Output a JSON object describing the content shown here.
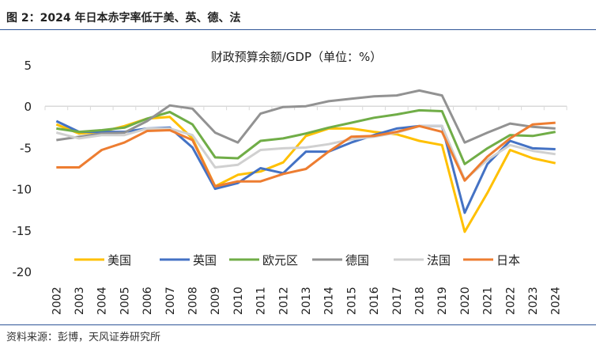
{
  "figure_title": "图 2：2024 年日本赤字率低于美、英、德、法",
  "source": "资料来源：彭博，天风证券研究所",
  "chart_data": {
    "type": "line",
    "title": "财政预算余额/GDP（单位：%）",
    "xlabel": "",
    "ylabel": "",
    "ylim": [
      -20,
      5
    ],
    "yticks": [
      5,
      0,
      -5,
      -10,
      -15,
      -20
    ],
    "grid": false,
    "legend_position": "bottom-inside",
    "categories": [
      "2002",
      "2003",
      "2004",
      "2005",
      "2006",
      "2007",
      "2008",
      "2009",
      "2010",
      "2011",
      "2012",
      "2013",
      "2014",
      "2015",
      "2016",
      "2017",
      "2018",
      "2019",
      "2020",
      "2021",
      "2022",
      "2023",
      "2024"
    ],
    "series": [
      {
        "name": "美国",
        "color": "#ffc000",
        "values": [
          -2.2,
          -3.3,
          -3.1,
          -2.4,
          -1.5,
          -1.3,
          -3.9,
          -9.7,
          -8.3,
          -7.9,
          -6.8,
          -3.6,
          -2.7,
          -2.7,
          -3.1,
          -3.4,
          -4.2,
          -4.7,
          -15.2,
          -10.5,
          -5.3,
          -6.3,
          -6.9
        ]
      },
      {
        "name": "英国",
        "color": "#4472c4",
        "values": [
          -1.8,
          -3.1,
          -3.1,
          -3.1,
          -2.7,
          -2.6,
          -5.0,
          -10.0,
          -9.3,
          -7.5,
          -8.1,
          -5.5,
          -5.5,
          -4.4,
          -3.5,
          -2.7,
          -2.4,
          -2.4,
          -12.9,
          -7.0,
          -4.2,
          -5.1,
          -5.2
        ]
      },
      {
        "name": "欧元区",
        "color": "#70ad47",
        "values": [
          -2.7,
          -3.1,
          -2.9,
          -2.6,
          -1.5,
          -0.7,
          -2.2,
          -6.2,
          -6.3,
          -4.2,
          -3.9,
          -3.3,
          -2.6,
          -2.0,
          -1.4,
          -1.0,
          -0.5,
          -0.6,
          -7.0,
          -5.1,
          -3.5,
          -3.6,
          -3.1
        ]
      },
      {
        "name": "德国",
        "color": "#929292",
        "values": [
          -4.1,
          -3.7,
          -3.3,
          -3.2,
          -1.8,
          0.1,
          -0.3,
          -3.2,
          -4.4,
          -0.9,
          -0.1,
          0.0,
          0.6,
          0.9,
          1.2,
          1.3,
          1.9,
          1.3,
          -4.4,
          -3.2,
          -2.1,
          -2.5,
          -2.7
        ]
      },
      {
        "name": "法国",
        "color": "#d0d0d0",
        "values": [
          -3.2,
          -3.9,
          -3.5,
          -3.5,
          -2.7,
          -2.7,
          -3.5,
          -7.4,
          -7.1,
          -5.3,
          -5.1,
          -5.0,
          -4.6,
          -4.0,
          -3.7,
          -3.2,
          -2.4,
          -2.4,
          -8.9,
          -6.5,
          -4.7,
          -5.4,
          -5.8
        ]
      },
      {
        "name": "日本",
        "color": "#ed7d31",
        "values": [
          -7.4,
          -7.4,
          -5.3,
          -4.4,
          -3.0,
          -2.9,
          -4.1,
          -9.7,
          -9.1,
          -9.1,
          -8.2,
          -7.6,
          -5.5,
          -3.7,
          -3.6,
          -3.1,
          -2.4,
          -3.1,
          -9.0,
          -6.1,
          -3.9,
          -2.2,
          -2.0
        ]
      }
    ]
  }
}
